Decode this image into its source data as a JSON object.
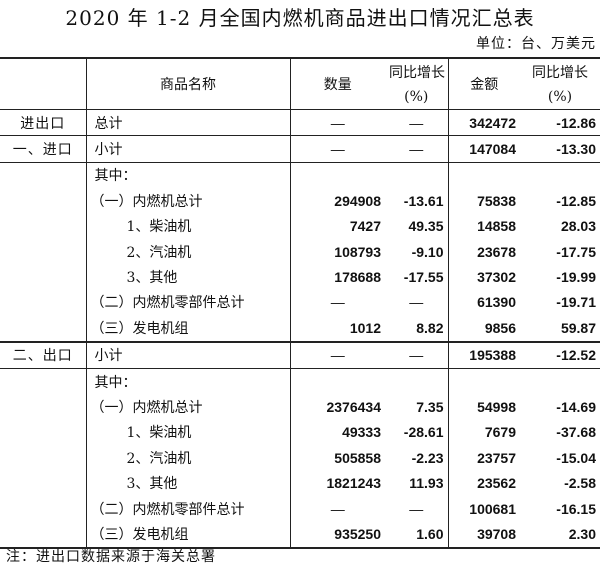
{
  "title": "2020 年 1-2 月全国内燃机商品进出口情况汇总表",
  "unit": "单位：台、万美元",
  "headers": {
    "name": "商品名称",
    "qty": "数量",
    "qty_yoy_line1": "同比增长",
    "qty_yoy_line2": "(%)",
    "amt": "金额",
    "amt_yoy_line1": "同比增长",
    "amt_yoy_line2": "(%)"
  },
  "rows": [
    {
      "section": "进出口",
      "name": "总计",
      "indent": 0,
      "qty": "—",
      "qty_yoy": "—",
      "amt": "342472",
      "amt_yoy": "-12.86",
      "line": "bt"
    },
    {
      "section": "一、进口",
      "name": "小计",
      "indent": 0,
      "qty": "—",
      "qty_yoy": "—",
      "amt": "147084",
      "amt_yoy": "-13.30",
      "line": "bt"
    },
    {
      "section": "",
      "name": "其中：",
      "indent": 0,
      "qty": "",
      "qty_yoy": "",
      "amt": "",
      "amt_yoy": "",
      "line": "bt"
    },
    {
      "section": "",
      "name": "（一）内燃机总计",
      "indent": 1,
      "qty": "294908",
      "qty_yoy": "-13.61",
      "amt": "75838",
      "amt_yoy": "-12.85"
    },
    {
      "section": "",
      "name": "1、柴油机",
      "indent": 2,
      "qty": "7427",
      "qty_yoy": "49.35",
      "amt": "14858",
      "amt_yoy": "28.03"
    },
    {
      "section": "",
      "name": "2、汽油机",
      "indent": 2,
      "qty": "108793",
      "qty_yoy": "-9.10",
      "amt": "23678",
      "amt_yoy": "-17.75"
    },
    {
      "section": "",
      "name": "3、其他",
      "indent": 2,
      "qty": "178688",
      "qty_yoy": "-17.55",
      "amt": "37302",
      "amt_yoy": "-19.99"
    },
    {
      "section": "",
      "name": "（二）内燃机零部件总计",
      "indent": 1,
      "qty": "—",
      "qty_yoy": "—",
      "amt": "61390",
      "amt_yoy": "-19.71"
    },
    {
      "section": "",
      "name": "（三）发电机组",
      "indent": 1,
      "qty": "1012",
      "qty_yoy": "8.82",
      "amt": "9856",
      "amt_yoy": "59.87"
    },
    {
      "section": "二、出口",
      "name": "小计",
      "indent": 0,
      "qty": "—",
      "qty_yoy": "—",
      "amt": "195388",
      "amt_yoy": "-12.52",
      "line": "bt2"
    },
    {
      "section": "",
      "name": "其中：",
      "indent": 0,
      "qty": "",
      "qty_yoy": "",
      "amt": "",
      "amt_yoy": "",
      "line": "bt"
    },
    {
      "section": "",
      "name": "（一）内燃机总计",
      "indent": 1,
      "qty": "2376434",
      "qty_yoy": "7.35",
      "amt": "54998",
      "amt_yoy": "-14.69"
    },
    {
      "section": "",
      "name": "1、柴油机",
      "indent": 2,
      "qty": "49333",
      "qty_yoy": "-28.61",
      "amt": "7679",
      "amt_yoy": "-37.68"
    },
    {
      "section": "",
      "name": "2、汽油机",
      "indent": 2,
      "qty": "505858",
      "qty_yoy": "-2.23",
      "amt": "23757",
      "amt_yoy": "-15.04"
    },
    {
      "section": "",
      "name": "3、其他",
      "indent": 2,
      "qty": "1821243",
      "qty_yoy": "11.93",
      "amt": "23562",
      "amt_yoy": "-2.58"
    },
    {
      "section": "",
      "name": "（二）内燃机零部件总计",
      "indent": 1,
      "qty": "—",
      "qty_yoy": "—",
      "amt": "100681",
      "amt_yoy": "-16.15"
    },
    {
      "section": "",
      "name": "（三）发电机组",
      "indent": 1,
      "qty": "935250",
      "qty_yoy": "1.60",
      "amt": "39708",
      "amt_yoy": "2.30",
      "last": true
    }
  ],
  "note": "注：进出口数据来源于海关总署"
}
